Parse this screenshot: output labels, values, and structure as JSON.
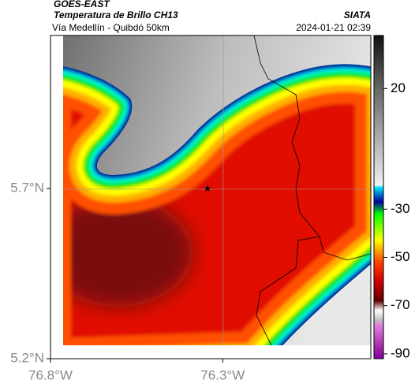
{
  "header": {
    "title": "GOES-EAST",
    "subtitle": "Temperatura de Brillo CH13",
    "location": "Vía Medellín - Quibdó 50km",
    "source": "SIATA",
    "datetime": "2024-01-21 02:39"
  },
  "map": {
    "xlim": [
      -76.8,
      -75.87
    ],
    "ylim": [
      5.2,
      6.15
    ],
    "xticks": [
      {
        "value": -76.8,
        "label": "76.8°W"
      },
      {
        "value": -76.3,
        "label": "76.3°W"
      }
    ],
    "yticks": [
      {
        "value": 5.2,
        "label": "5.2°N"
      },
      {
        "value": 5.7,
        "label": "5.7°N"
      }
    ]
  },
  "colorbar": {
    "clim": [
      -92,
      42
    ],
    "ticks": [
      20,
      -30,
      -50,
      -70,
      -90
    ]
  }
}
